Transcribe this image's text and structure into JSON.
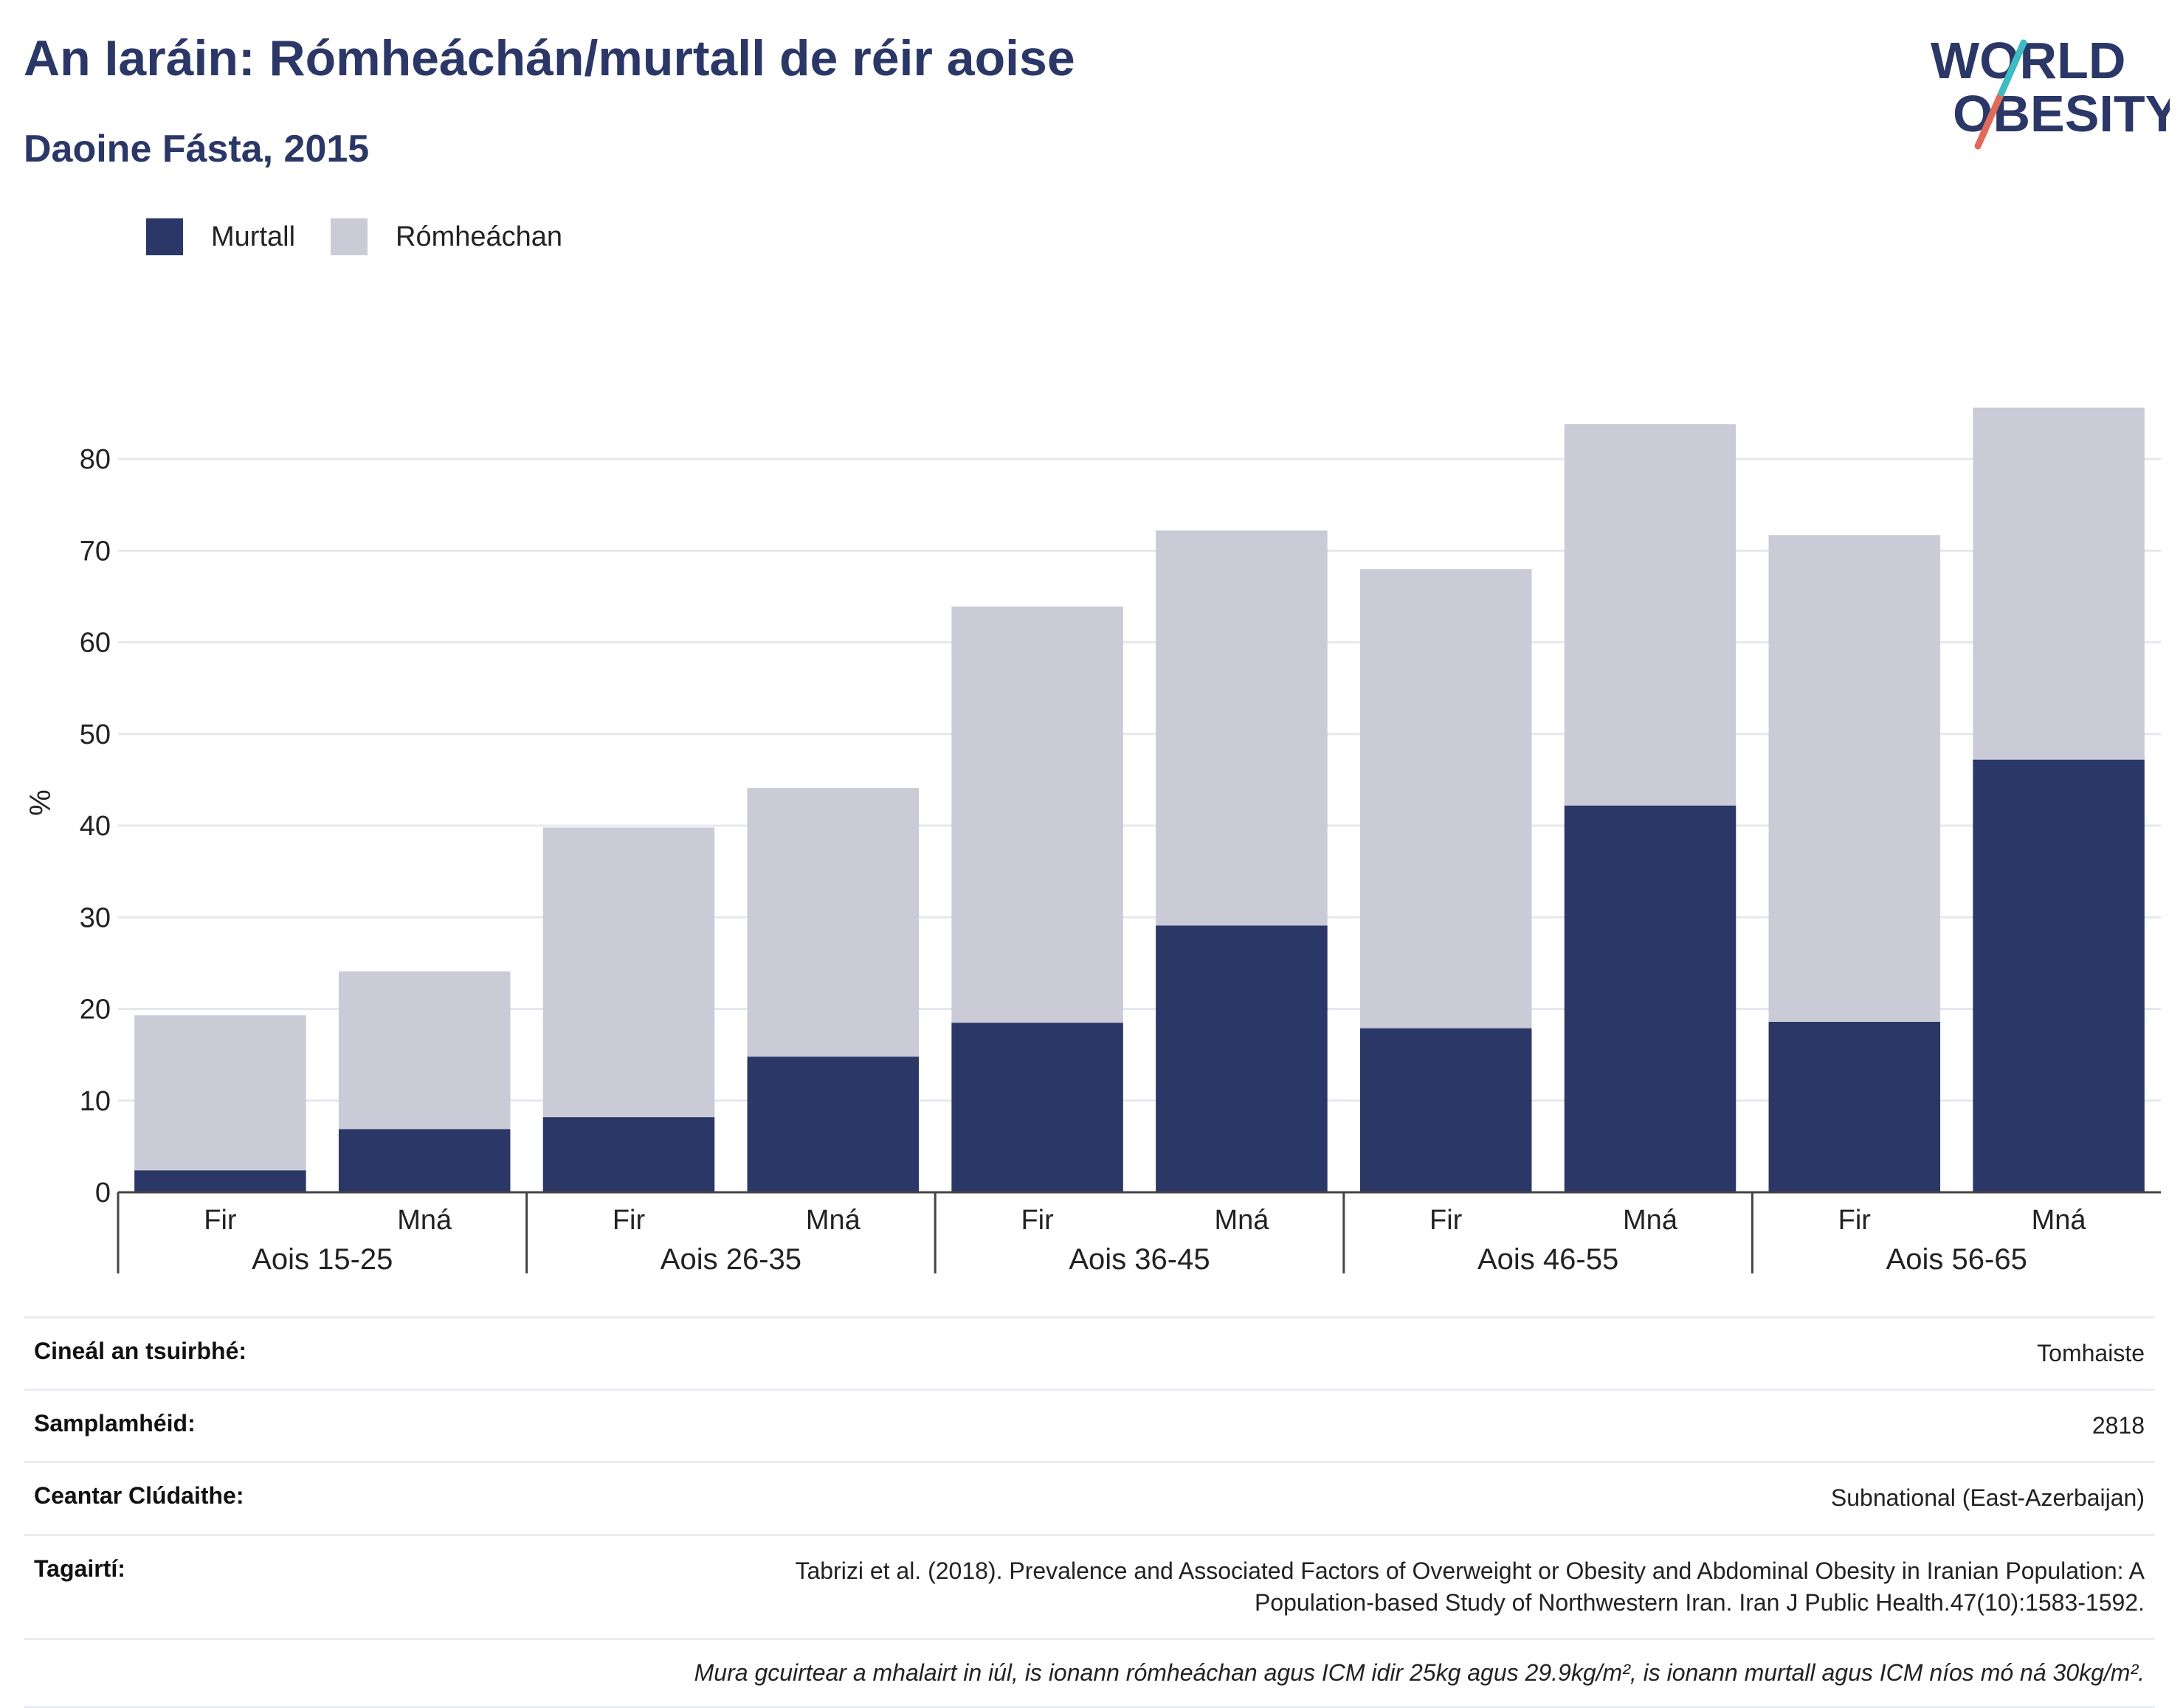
{
  "header": {
    "title": "An Iaráin: Rómheáchán/murtall de réir aoise",
    "subtitle": "Daoine Fásta, 2015"
  },
  "logo": {
    "line1": "WORLD",
    "line2": "OBESITY"
  },
  "colors": {
    "obesity": "#2b3766",
    "overweight": "#cacbd6",
    "brand": "#2b3766",
    "accent_red": "#e06b58",
    "accent_teal": "#3dbcc3"
  },
  "legend": [
    {
      "label": "Murtall",
      "color": "#2b3766"
    },
    {
      "label": "Rómheáchan",
      "color": "#cacbd6"
    }
  ],
  "chart_data": {
    "type": "bar",
    "stacked": true,
    "ylabel": "%",
    "ylim": [
      0,
      85
    ],
    "yticks": [
      0,
      10,
      20,
      30,
      40,
      50,
      60,
      70,
      80
    ],
    "grid": true,
    "legend_position": "top-left",
    "groups": [
      "Aois 15-25",
      "Aois 26-35",
      "Aois 36-45",
      "Aois 46-55",
      "Aois 56-65"
    ],
    "categories": [
      "Fir",
      "Mná",
      "Fir",
      "Mná",
      "Fir",
      "Mná",
      "Fir",
      "Mná",
      "Fir",
      "Mná"
    ],
    "series": [
      {
        "name": "Murtall",
        "values": [
          2.4,
          6.9,
          8.2,
          14.8,
          18.5,
          29.1,
          17.9,
          42.2,
          18.6,
          47.2
        ]
      },
      {
        "name": "Rómheáchan",
        "values": [
          16.9,
          17.2,
          31.6,
          29.3,
          45.4,
          43.1,
          50.1,
          41.6,
          53.1,
          38.4
        ]
      }
    ]
  },
  "info": {
    "survey_type_label": "Cineál an tsuirbhé:",
    "survey_type_value": "Tomhaiste",
    "sample_label": "Samplamhéid:",
    "sample_value": "2818",
    "area_label": "Ceantar Clúdaithe:",
    "area_value": "Subnational (East-Azerbaijan)",
    "ref_label": "Tagairtí:",
    "ref_line1": "Tabrizi et al. (2018). Prevalence and Associated Factors of Overweight or Obesity and Abdominal Obesity in Iranian Population: A",
    "ref_line2": "Population-based Study of Northwestern Iran. Iran J Public Health.47(10):1583-1592.",
    "note": "Mura gcuirtear a mhalairt in iúl, is ionann rómheáchan agus ICM idir 25kg agus 29.9kg/m², is ionann murtall agus ICM níos mó ná 30kg/m²."
  }
}
